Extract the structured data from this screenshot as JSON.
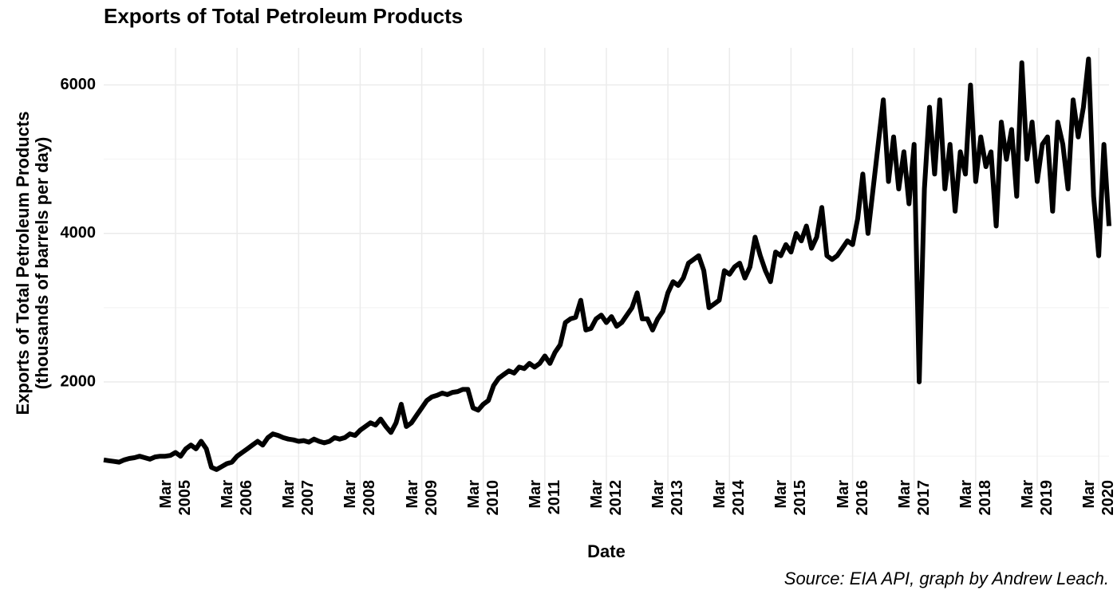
{
  "chart_data": {
    "type": "line",
    "title": "Exports of Total Petroleum Products",
    "ylabel": [
      "Exports of Total Petroleum Products",
      "(thousands of barrels per day)"
    ],
    "xlabel": "Date",
    "caption": "Source: EIA API, graph by Andrew Leach.",
    "x": [
      "2004-01",
      "2004-02",
      "2004-03",
      "2004-04",
      "2004-05",
      "2004-06",
      "2004-07",
      "2004-08",
      "2004-09",
      "2004-10",
      "2004-11",
      "2004-12",
      "2005-01",
      "2005-02",
      "2005-03",
      "2005-04",
      "2005-05",
      "2005-06",
      "2005-07",
      "2005-08",
      "2005-09",
      "2005-10",
      "2005-11",
      "2005-12",
      "2006-01",
      "2006-02",
      "2006-03",
      "2006-04",
      "2006-05",
      "2006-06",
      "2006-07",
      "2006-08",
      "2006-09",
      "2006-10",
      "2006-11",
      "2006-12",
      "2007-01",
      "2007-02",
      "2007-03",
      "2007-04",
      "2007-05",
      "2007-06",
      "2007-07",
      "2007-08",
      "2007-09",
      "2007-10",
      "2007-11",
      "2007-12",
      "2008-01",
      "2008-02",
      "2008-03",
      "2008-04",
      "2008-05",
      "2008-06",
      "2008-07",
      "2008-08",
      "2008-09",
      "2008-10",
      "2008-11",
      "2008-12",
      "2009-01",
      "2009-02",
      "2009-03",
      "2009-04",
      "2009-05",
      "2009-06",
      "2009-07",
      "2009-08",
      "2009-09",
      "2009-10",
      "2009-11",
      "2009-12",
      "2010-01",
      "2010-02",
      "2010-03",
      "2010-04",
      "2010-05",
      "2010-06",
      "2010-07",
      "2010-08",
      "2010-09",
      "2010-10",
      "2010-11",
      "2010-12",
      "2011-01",
      "2011-02",
      "2011-03",
      "2011-04",
      "2011-05",
      "2011-06",
      "2011-07",
      "2011-08",
      "2011-09",
      "2011-10",
      "2011-11",
      "2011-12",
      "2012-01",
      "2012-02",
      "2012-03",
      "2012-04",
      "2012-05",
      "2012-06",
      "2012-07",
      "2012-08",
      "2012-09",
      "2012-10",
      "2012-11",
      "2012-12",
      "2013-01",
      "2013-02",
      "2013-03",
      "2013-04",
      "2013-05",
      "2013-06",
      "2013-07",
      "2013-08",
      "2013-09",
      "2013-10",
      "2013-11",
      "2013-12",
      "2014-01",
      "2014-02",
      "2014-03",
      "2014-04",
      "2014-05",
      "2014-06",
      "2014-07",
      "2014-08",
      "2014-09",
      "2014-10",
      "2014-11",
      "2014-12",
      "2015-01",
      "2015-02",
      "2015-03",
      "2015-04",
      "2015-05",
      "2015-06",
      "2015-07",
      "2015-08",
      "2015-09",
      "2015-10",
      "2015-11",
      "2015-12",
      "2016-01",
      "2016-02",
      "2016-03",
      "2016-04",
      "2016-05",
      "2016-06",
      "2016-07",
      "2016-08",
      "2016-09",
      "2016-10",
      "2016-11",
      "2016-12",
      "2017-01",
      "2017-02",
      "2017-03",
      "2017-04",
      "2017-05",
      "2017-06",
      "2017-07",
      "2017-08",
      "2017-09",
      "2017-10",
      "2017-11",
      "2017-12",
      "2018-01",
      "2018-02",
      "2018-03",
      "2018-04",
      "2018-05",
      "2018-06",
      "2018-07",
      "2018-08",
      "2018-09",
      "2018-10",
      "2018-11",
      "2018-12",
      "2019-01",
      "2019-02",
      "2019-03",
      "2019-04",
      "2019-05",
      "2019-06",
      "2019-07",
      "2019-08",
      "2019-09",
      "2019-10",
      "2019-11",
      "2019-12",
      "2020-01",
      "2020-02",
      "2020-03",
      "2020-04",
      "2020-05"
    ],
    "series": [
      {
        "name": "Exports",
        "color": "#000000",
        "values": [
          950,
          940,
          930,
          920,
          950,
          970,
          980,
          1000,
          980,
          960,
          990,
          1000,
          1000,
          1010,
          1050,
          1000,
          1100,
          1150,
          1100,
          1200,
          1100,
          850,
          820,
          860,
          900,
          920,
          1000,
          1050,
          1100,
          1150,
          1200,
          1150,
          1250,
          1300,
          1280,
          1250,
          1230,
          1220,
          1200,
          1210,
          1190,
          1230,
          1200,
          1180,
          1200,
          1250,
          1230,
          1250,
          1300,
          1280,
          1350,
          1400,
          1450,
          1420,
          1500,
          1400,
          1320,
          1450,
          1700,
          1400,
          1450,
          1550,
          1650,
          1750,
          1800,
          1820,
          1850,
          1830,
          1860,
          1870,
          1900,
          1900,
          1650,
          1620,
          1700,
          1750,
          1950,
          2050,
          2100,
          2150,
          2120,
          2200,
          2180,
          2250,
          2200,
          2250,
          2350,
          2250,
          2400,
          2500,
          2800,
          2850,
          2870,
          3100,
          2700,
          2720,
          2850,
          2900,
          2800,
          2880,
          2750,
          2800,
          2900,
          3000,
          3200,
          2850,
          2850,
          2700,
          2850,
          2950,
          3200,
          3350,
          3300,
          3400,
          3600,
          3650,
          3700,
          3500,
          3000,
          3050,
          3100,
          3500,
          3450,
          3550,
          3600,
          3400,
          3550,
          3950,
          3700,
          3500,
          3350,
          3750,
          3700,
          3850,
          3750,
          4000,
          3900,
          4100,
          3800,
          3950,
          4350,
          3700,
          3650,
          3700,
          3800,
          3900,
          3850,
          4200,
          4800,
          4000,
          4600,
          5200,
          5800,
          4700,
          5300,
          4600,
          5100,
          4400,
          5200,
          2000,
          4600,
          5700,
          4800,
          5800,
          4600,
          5200,
          4300,
          5100,
          4800,
          6000,
          4700,
          5300,
          4900,
          5100,
          4100,
          5500,
          5000,
          5400,
          4500,
          6300,
          5000,
          5500,
          4700,
          5200,
          5300,
          4300,
          5500,
          5200,
          4600,
          5800,
          5300,
          5700,
          6350,
          4500,
          3700,
          5200,
          4100
        ]
      }
    ],
    "xlim": [
      "2004-01",
      "2020-05"
    ],
    "xticks": [
      {
        "value": "2005-03",
        "label": "Mar 2005"
      },
      {
        "value": "2006-03",
        "label": "Mar 2006"
      },
      {
        "value": "2007-03",
        "label": "Mar 2007"
      },
      {
        "value": "2008-03",
        "label": "Mar 2008"
      },
      {
        "value": "2009-03",
        "label": "Mar 2009"
      },
      {
        "value": "2010-03",
        "label": "Mar 2010"
      },
      {
        "value": "2011-03",
        "label": "Mar 2011"
      },
      {
        "value": "2012-03",
        "label": "Mar 2012"
      },
      {
        "value": "2013-03",
        "label": "Mar 2013"
      },
      {
        "value": "2014-03",
        "label": "Mar 2014"
      },
      {
        "value": "2015-03",
        "label": "Mar 2015"
      },
      {
        "value": "2016-03",
        "label": "Mar 2016"
      },
      {
        "value": "2017-03",
        "label": "Mar 2017"
      },
      {
        "value": "2018-03",
        "label": "Mar 2018"
      },
      {
        "value": "2019-03",
        "label": "Mar 2019"
      },
      {
        "value": "2020-03",
        "label": "Mar 2020"
      }
    ],
    "ylim": [
      540,
      6500
    ],
    "yticks": [
      2000,
      4000,
      6000
    ],
    "y_minor_ticks": [
      1000,
      3000,
      5000
    ],
    "grid": true
  }
}
